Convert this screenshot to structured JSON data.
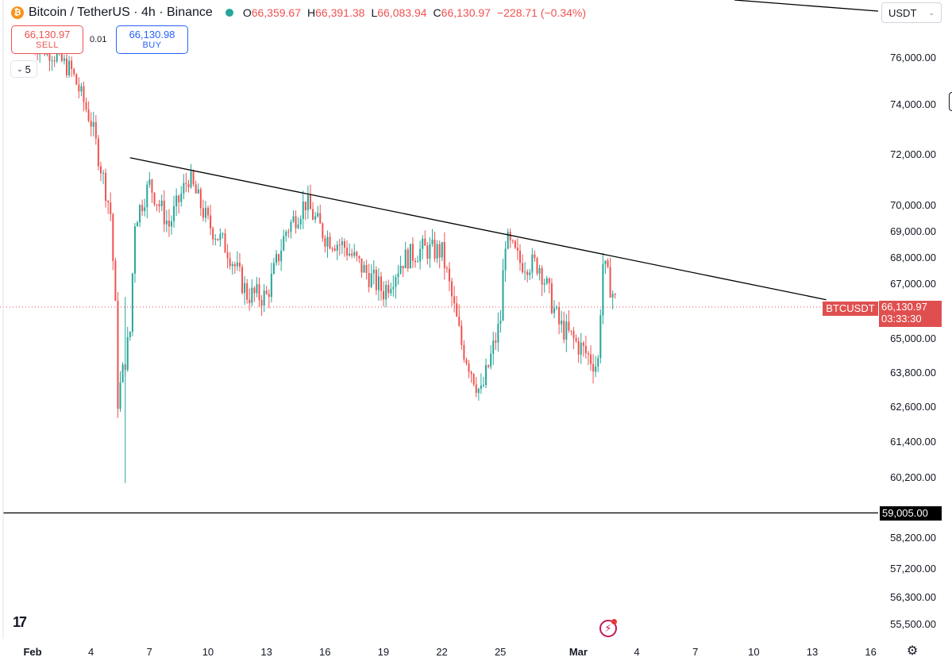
{
  "legend": {
    "coin_icon": "bitcoin-icon",
    "symbol_title": "Bitcoin / TetherUS · 4h · Binance",
    "ohlc": [
      {
        "key": "O",
        "value": "66,359.67"
      },
      {
        "key": "H",
        "value": "66,391.38"
      },
      {
        "key": "L",
        "value": "66,083.94"
      },
      {
        "key": "C",
        "value": "66,130.97"
      }
    ],
    "change": "−228.71 (−0.34%)"
  },
  "trading": {
    "sell_price": "66,130.97",
    "sell_label": "SELL",
    "buy_price": "66,130.98",
    "buy_label": "BUY",
    "spread": "0.01",
    "collapse_count": "5"
  },
  "currency": "USDT",
  "y_axis_labels": [
    "76,000.00",
    "74,000.00",
    "72,000.00",
    "70,000.00",
    "69,000.00",
    "68,000.00",
    "67,000.00",
    "65,000.00",
    "63,800.00",
    "62,600.00",
    "61,400.00",
    "60,200.00",
    "58,200.00",
    "57,200.00",
    "56,300.00",
    "55,500.00"
  ],
  "x_axis_labels": [
    "Feb",
    "4",
    "7",
    "10",
    "13",
    "16",
    "19",
    "22",
    "25",
    "Mar",
    "4",
    "7",
    "10",
    "13",
    "16"
  ],
  "symbol_tag": "BTCUSDT",
  "last_price": "66,130.97",
  "countdown": "03:33:30",
  "horizontal_level": "59,005.00",
  "colors": {
    "up": "#26a69a",
    "down": "#ef5350",
    "price_line": "#e04f4f",
    "trendline": "#000000"
  },
  "chart_data": {
    "type": "candlestick",
    "timeframe": "4h",
    "y_axis_ticks": [
      76000,
      74000,
      72000,
      70000,
      69000,
      68000,
      67000,
      65000,
      63800,
      62600,
      61400,
      60200,
      58200,
      57200,
      56300,
      55500
    ],
    "x_axis_ticks": [
      "Feb",
      "4",
      "7",
      "10",
      "13",
      "16",
      "19",
      "22",
      "25",
      "Mar",
      "4",
      "7",
      "10",
      "13",
      "16"
    ],
    "last_close": 66130.97,
    "horizontal_line": 59005,
    "trendline": {
      "from": {
        "date": "Feb 6",
        "price": 71850
      },
      "to": {
        "date": "Mar 13",
        "price": 66400
      }
    },
    "close_path": [
      {
        "date": "Feb 1",
        "close": 76600
      },
      {
        "date": "Feb 2",
        "close": 76200
      },
      {
        "date": "Feb 3",
        "close": 75400
      },
      {
        "date": "Feb 4",
        "close": 73300
      },
      {
        "date": "Feb 5",
        "close": 69700
      },
      {
        "date": "Feb 5",
        "close": 66200
      },
      {
        "date": "Feb 5",
        "close": 62800
      },
      {
        "date": "Feb 6",
        "close": 65200
      },
      {
        "date": "Feb 6",
        "close": 69400
      },
      {
        "date": "Feb 7",
        "close": 70800
      },
      {
        "date": "Feb 8",
        "close": 69200
      },
      {
        "date": "Feb 9",
        "close": 71100
      },
      {
        "date": "Feb 10",
        "close": 69300
      },
      {
        "date": "Feb 11",
        "close": 68300
      },
      {
        "date": "Feb 12",
        "close": 66600
      },
      {
        "date": "Feb 13",
        "close": 66500
      },
      {
        "date": "Feb 14",
        "close": 69000
      },
      {
        "date": "Feb 15",
        "close": 70100
      },
      {
        "date": "Feb 16",
        "close": 68800
      },
      {
        "date": "Feb 17",
        "close": 68400
      },
      {
        "date": "Feb 18",
        "close": 67500
      },
      {
        "date": "Feb 19",
        "close": 66700
      },
      {
        "date": "Feb 20",
        "close": 67900
      },
      {
        "date": "Feb 21",
        "close": 68300
      },
      {
        "date": "Feb 22",
        "close": 68200
      },
      {
        "date": "Feb 23",
        "close": 64800
      },
      {
        "date": "Feb 24",
        "close": 63000
      },
      {
        "date": "Feb 25",
        "close": 65600
      },
      {
        "date": "Feb 25",
        "close": 68700
      },
      {
        "date": "Feb 26",
        "close": 67800
      },
      {
        "date": "Feb 27",
        "close": 67700
      },
      {
        "date": "Feb 28",
        "close": 65500
      },
      {
        "date": "Mar 1",
        "close": 64000
      },
      {
        "date": "Mar 1",
        "close": 67800
      },
      {
        "date": "Mar 2",
        "close": 66100
      }
    ]
  }
}
